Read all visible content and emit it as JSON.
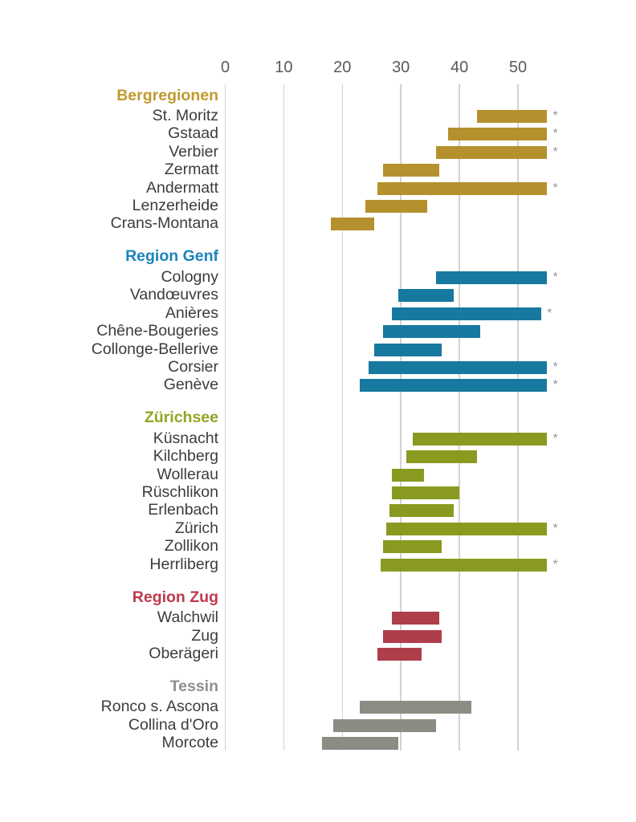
{
  "chart_data": {
    "type": "bar",
    "subtype": "horizontal-range-bars",
    "title": "",
    "xlabel": "",
    "ylabel": "",
    "xlim": [
      0,
      56
    ],
    "ticks": [
      0,
      10,
      20,
      30,
      40,
      50
    ],
    "tick_labels": [
      "0",
      "10",
      "20",
      "30",
      "40",
      "50"
    ],
    "grid": true,
    "gridline_color": "#D2D2D2",
    "axis_text_color": "#59595B",
    "label_text_color": "#3C3C3E",
    "capped_marker": "*",
    "capped_marker_color": "#97979B",
    "groups": [
      {
        "label": "Bergregionen",
        "header_color": "#C09A2F",
        "bar_color": "#B5912E",
        "items": [
          {
            "label": "St. Moritz",
            "min": 43,
            "max": 55,
            "capped": true
          },
          {
            "label": "Gstaad",
            "min": 38,
            "max": 55,
            "capped": true
          },
          {
            "label": "Verbier",
            "min": 36,
            "max": 55,
            "capped": true
          },
          {
            "label": "Zermatt",
            "min": 27,
            "max": 36.5,
            "capped": false
          },
          {
            "label": "Andermatt",
            "min": 26,
            "max": 55,
            "capped": true
          },
          {
            "label": "Lenzerheide",
            "min": 24,
            "max": 34.5,
            "capped": false
          },
          {
            "label": "Crans-Montana",
            "min": 18,
            "max": 25.5,
            "capped": false
          }
        ]
      },
      {
        "label": "Region Genf",
        "header_color": "#1B84BC",
        "bar_color": "#17799F",
        "items": [
          {
            "label": "Cologny",
            "min": 36,
            "max": 55,
            "capped": true
          },
          {
            "label": "Vandœuvres",
            "min": 29.5,
            "max": 39,
            "capped": false
          },
          {
            "label": "Anières",
            "min": 28.5,
            "max": 54,
            "capped": true
          },
          {
            "label": "Chêne-Bougeries",
            "min": 27,
            "max": 43.5,
            "capped": false
          },
          {
            "label": "Collonge-Bellerive",
            "min": 25.5,
            "max": 37,
            "capped": false
          },
          {
            "label": "Corsier",
            "min": 24.5,
            "max": 55,
            "capped": true
          },
          {
            "label": "Genève",
            "min": 23,
            "max": 55,
            "capped": true
          }
        ]
      },
      {
        "label": "Zürichsee",
        "header_color": "#94A421",
        "bar_color": "#8A9A20",
        "items": [
          {
            "label": "Küsnacht",
            "min": 32,
            "max": 55,
            "capped": true
          },
          {
            "label": "Kilchberg",
            "min": 31,
            "max": 43,
            "capped": false
          },
          {
            "label": "Wollerau",
            "min": 28.5,
            "max": 34,
            "capped": false
          },
          {
            "label": "Rüschlikon",
            "min": 28.5,
            "max": 40,
            "capped": false
          },
          {
            "label": "Erlenbach",
            "min": 28,
            "max": 39,
            "capped": false
          },
          {
            "label": "Zürich",
            "min": 27.5,
            "max": 55,
            "capped": true
          },
          {
            "label": "Zollikon",
            "min": 27,
            "max": 37,
            "capped": false
          },
          {
            "label": "Herrliberg",
            "min": 26.5,
            "max": 55,
            "capped": true
          }
        ]
      },
      {
        "label": "Region Zug",
        "header_color": "#BE3A4E",
        "bar_color": "#AF3E4B",
        "items": [
          {
            "label": "Walchwil",
            "min": 28.5,
            "max": 36.5,
            "capped": false
          },
          {
            "label": "Zug",
            "min": 27,
            "max": 37,
            "capped": false
          },
          {
            "label": "Oberägeri",
            "min": 26,
            "max": 33.5,
            "capped": false
          }
        ]
      },
      {
        "label": "Tessin",
        "header_color": "#8F8F8F",
        "bar_color": "#8C8C84",
        "items": [
          {
            "label": "Ronco s. Ascona",
            "min": 23,
            "max": 42,
            "capped": false
          },
          {
            "label": "Collina d'Oro",
            "min": 18.5,
            "max": 36,
            "capped": false
          },
          {
            "label": "Morcote",
            "min": 16.5,
            "max": 29.5,
            "capped": false
          }
        ]
      }
    ]
  }
}
